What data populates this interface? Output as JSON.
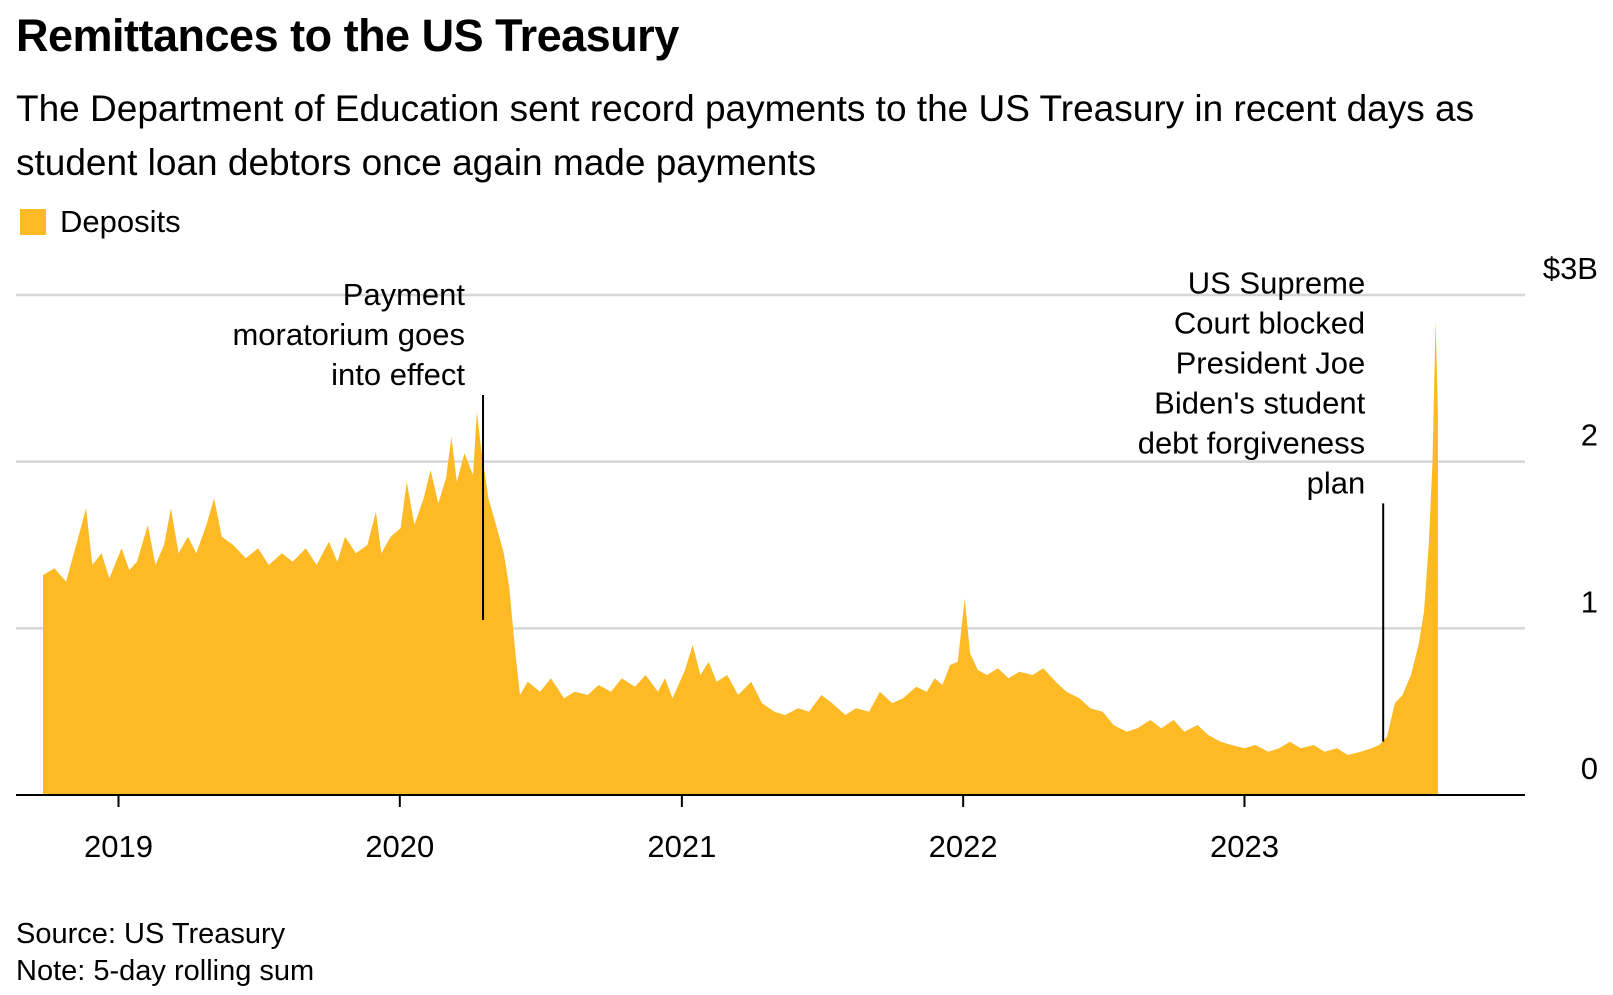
{
  "title": "Remittances to the US Treasury",
  "subtitle": "The Department of Education sent record payments to the US Treasury in recent days as student loan debtors once again made payments",
  "legend": {
    "label": "Deposits"
  },
  "colors": {
    "series": "#FDBA24",
    "grid": "#d6d6d6",
    "axis": "#000000",
    "annotation": "#000000"
  },
  "source": "Source: US Treasury",
  "note": "Note: 5-day rolling sum",
  "chart_data": {
    "type": "area",
    "title": "Remittances to the US Treasury",
    "xlabel": "",
    "ylabel": "",
    "x_tick_labels": [
      "2019",
      "2020",
      "2021",
      "2022",
      "2023"
    ],
    "y_tick_labels": [
      "$3B",
      "2",
      "1",
      "0"
    ],
    "ylim": [
      0,
      3
    ],
    "xlim": [
      "2018-08-21",
      "2023-12-31"
    ],
    "grid": true,
    "legend_position": "top-left",
    "series": [
      {
        "name": "Deposits",
        "points": [
          [
            "2018-09-25",
            1.32
          ],
          [
            "2018-10-10",
            1.36
          ],
          [
            "2018-10-25",
            1.28
          ],
          [
            "2018-11-10",
            1.55
          ],
          [
            "2018-11-20",
            1.72
          ],
          [
            "2018-11-28",
            1.38
          ],
          [
            "2018-12-10",
            1.45
          ],
          [
            "2018-12-20",
            1.3
          ],
          [
            "2019-01-05",
            1.48
          ],
          [
            "2019-01-15",
            1.35
          ],
          [
            "2019-01-25",
            1.4
          ],
          [
            "2019-02-08",
            1.62
          ],
          [
            "2019-02-18",
            1.38
          ],
          [
            "2019-03-01",
            1.5
          ],
          [
            "2019-03-10",
            1.72
          ],
          [
            "2019-03-20",
            1.45
          ],
          [
            "2019-04-01",
            1.55
          ],
          [
            "2019-04-12",
            1.45
          ],
          [
            "2019-04-25",
            1.62
          ],
          [
            "2019-05-05",
            1.78
          ],
          [
            "2019-05-15",
            1.55
          ],
          [
            "2019-05-30",
            1.5
          ],
          [
            "2019-06-15",
            1.42
          ],
          [
            "2019-07-01",
            1.48
          ],
          [
            "2019-07-15",
            1.38
          ],
          [
            "2019-08-01",
            1.45
          ],
          [
            "2019-08-15",
            1.4
          ],
          [
            "2019-09-01",
            1.48
          ],
          [
            "2019-09-15",
            1.38
          ],
          [
            "2019-10-01",
            1.52
          ],
          [
            "2019-10-12",
            1.4
          ],
          [
            "2019-10-22",
            1.55
          ],
          [
            "2019-11-05",
            1.45
          ],
          [
            "2019-11-20",
            1.5
          ],
          [
            "2019-12-01",
            1.7
          ],
          [
            "2019-12-08",
            1.45
          ],
          [
            "2019-12-20",
            1.55
          ],
          [
            "2020-01-02",
            1.6
          ],
          [
            "2020-01-10",
            1.88
          ],
          [
            "2020-01-20",
            1.62
          ],
          [
            "2020-02-01",
            1.78
          ],
          [
            "2020-02-10",
            1.95
          ],
          [
            "2020-02-20",
            1.75
          ],
          [
            "2020-03-01",
            1.9
          ],
          [
            "2020-03-08",
            2.15
          ],
          [
            "2020-03-15",
            1.88
          ],
          [
            "2020-03-25",
            2.05
          ],
          [
            "2020-04-05",
            1.92
          ],
          [
            "2020-04-10",
            2.3
          ],
          [
            "2020-04-15",
            2.1
          ],
          [
            "2020-04-25",
            1.78
          ],
          [
            "2020-05-05",
            1.62
          ],
          [
            "2020-05-15",
            1.45
          ],
          [
            "2020-05-22",
            1.25
          ],
          [
            "2020-05-30",
            0.85
          ],
          [
            "2020-06-05",
            0.6
          ],
          [
            "2020-06-15",
            0.68
          ],
          [
            "2020-07-01",
            0.62
          ],
          [
            "2020-07-15",
            0.7
          ],
          [
            "2020-08-01",
            0.58
          ],
          [
            "2020-08-15",
            0.62
          ],
          [
            "2020-09-01",
            0.6
          ],
          [
            "2020-09-15",
            0.66
          ],
          [
            "2020-10-01",
            0.62
          ],
          [
            "2020-10-15",
            0.7
          ],
          [
            "2020-11-01",
            0.65
          ],
          [
            "2020-11-15",
            0.72
          ],
          [
            "2020-12-01",
            0.62
          ],
          [
            "2020-12-10",
            0.7
          ],
          [
            "2020-12-20",
            0.58
          ],
          [
            "2021-01-05",
            0.75
          ],
          [
            "2021-01-15",
            0.9
          ],
          [
            "2021-01-25",
            0.72
          ],
          [
            "2021-02-05",
            0.8
          ],
          [
            "2021-02-15",
            0.68
          ],
          [
            "2021-03-01",
            0.72
          ],
          [
            "2021-03-15",
            0.6
          ],
          [
            "2021-04-01",
            0.68
          ],
          [
            "2021-04-15",
            0.55
          ],
          [
            "2021-05-01",
            0.5
          ],
          [
            "2021-05-15",
            0.48
          ],
          [
            "2021-06-01",
            0.52
          ],
          [
            "2021-06-15",
            0.5
          ],
          [
            "2021-07-01",
            0.6
          ],
          [
            "2021-07-15",
            0.55
          ],
          [
            "2021-08-01",
            0.48
          ],
          [
            "2021-08-15",
            0.52
          ],
          [
            "2021-09-01",
            0.5
          ],
          [
            "2021-09-15",
            0.62
          ],
          [
            "2021-10-01",
            0.55
          ],
          [
            "2021-10-15",
            0.58
          ],
          [
            "2021-11-01",
            0.65
          ],
          [
            "2021-11-15",
            0.62
          ],
          [
            "2021-11-25",
            0.7
          ],
          [
            "2021-12-05",
            0.66
          ],
          [
            "2021-12-15",
            0.78
          ],
          [
            "2021-12-25",
            0.8
          ],
          [
            "2022-01-03",
            1.18
          ],
          [
            "2022-01-10",
            0.85
          ],
          [
            "2022-01-20",
            0.75
          ],
          [
            "2022-02-01",
            0.72
          ],
          [
            "2022-02-15",
            0.76
          ],
          [
            "2022-03-01",
            0.7
          ],
          [
            "2022-03-15",
            0.74
          ],
          [
            "2022-04-01",
            0.72
          ],
          [
            "2022-04-15",
            0.76
          ],
          [
            "2022-05-01",
            0.68
          ],
          [
            "2022-05-15",
            0.62
          ],
          [
            "2022-06-01",
            0.58
          ],
          [
            "2022-06-15",
            0.52
          ],
          [
            "2022-07-01",
            0.5
          ],
          [
            "2022-07-15",
            0.42
          ],
          [
            "2022-08-01",
            0.38
          ],
          [
            "2022-08-15",
            0.4
          ],
          [
            "2022-09-01",
            0.45
          ],
          [
            "2022-09-15",
            0.4
          ],
          [
            "2022-10-01",
            0.45
          ],
          [
            "2022-10-15",
            0.38
          ],
          [
            "2022-11-01",
            0.42
          ],
          [
            "2022-11-15",
            0.36
          ],
          [
            "2022-12-01",
            0.32
          ],
          [
            "2022-12-15",
            0.3
          ],
          [
            "2023-01-01",
            0.28
          ],
          [
            "2023-01-15",
            0.3
          ],
          [
            "2023-02-01",
            0.26
          ],
          [
            "2023-02-15",
            0.28
          ],
          [
            "2023-03-01",
            0.32
          ],
          [
            "2023-03-15",
            0.28
          ],
          [
            "2023-04-01",
            0.3
          ],
          [
            "2023-04-15",
            0.26
          ],
          [
            "2023-05-01",
            0.28
          ],
          [
            "2023-05-15",
            0.24
          ],
          [
            "2023-06-01",
            0.26
          ],
          [
            "2023-06-15",
            0.28
          ],
          [
            "2023-06-25",
            0.3
          ],
          [
            "2023-07-05",
            0.35
          ],
          [
            "2023-07-15",
            0.55
          ],
          [
            "2023-07-25",
            0.6
          ],
          [
            "2023-08-05",
            0.72
          ],
          [
            "2023-08-15",
            0.9
          ],
          [
            "2023-08-22",
            1.1
          ],
          [
            "2023-08-28",
            1.5
          ],
          [
            "2023-09-02",
            2.0
          ],
          [
            "2023-09-06",
            2.85
          ],
          [
            "2023-09-09",
            2.3
          ]
        ]
      }
    ],
    "highlight_point": {
      "x": "2020-04-18",
      "y": 1.05
    },
    "annotations": [
      {
        "lines": [
          "Payment",
          "moratorium goes",
          "into effect"
        ],
        "x": "2020-04-18",
        "y": 2.4
      },
      {
        "lines": [
          "US Supreme",
          "Court blocked",
          "President Joe",
          "Biden's student",
          "debt forgiveness",
          "plan"
        ],
        "x": "2023-06-30",
        "y": 1.75
      }
    ]
  }
}
